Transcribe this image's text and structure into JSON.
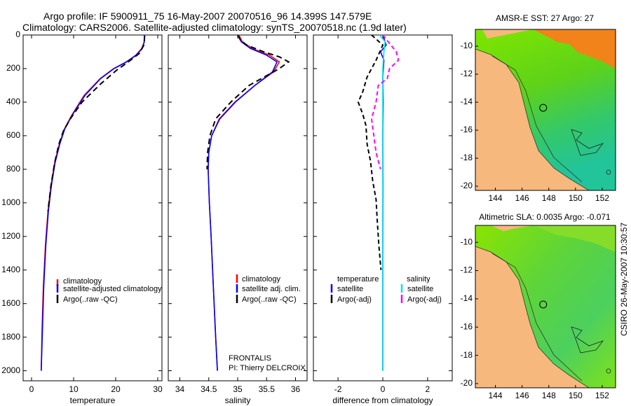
{
  "header": {
    "line1": "Argo profile: IF 5900911_75 16-May-2007 20070516_96 14.399S 147.579E",
    "line2": "Climatology: CARS2006. Satellite-adjusted climatology: synTS_20070518.nc (1.9d later)"
  },
  "colors": {
    "climatology": "#ff0000",
    "satellite": "#0000ff",
    "argo": "#000000",
    "sal_sat": "#00e5e5",
    "sal_argo": "#ff00ff"
  },
  "footer": "CSIRO 26-May-2007 10:30:57",
  "frontalis": {
    "name": "FRONTALIS",
    "pi": "PI: Thierry DELCROIX"
  },
  "chart_data": [
    {
      "type": "line",
      "panel": "temperature",
      "xlabel": "temperature",
      "xlim": [
        -2,
        31
      ],
      "xticks": [
        "0",
        "10",
        "20",
        "30"
      ],
      "xtick_values": [
        0,
        10,
        20,
        30
      ],
      "ylim": [
        2060,
        0
      ],
      "yticks": [
        "0",
        "200",
        "400",
        "600",
        "800",
        "1000",
        "1200",
        "1400",
        "1600",
        "1800",
        "2000"
      ],
      "ytick_values": [
        0,
        200,
        400,
        600,
        800,
        1000,
        1200,
        1400,
        1600,
        1800,
        2000
      ],
      "legend": [
        "climatology",
        "satellite-adjusted climatology",
        "Argo(..raw -QC)"
      ],
      "series": [
        {
          "name": "climatology",
          "color": "#ff0000",
          "dash": "",
          "x": [
            26.8,
            26.8,
            26.2,
            24.8,
            22.5,
            19.5,
            16.3,
            12.5,
            9.5,
            7.8,
            6.6,
            5.5,
            4.6,
            3.9,
            3.3,
            2.8,
            2.5,
            2.3
          ],
          "y": [
            0,
            40,
            80,
            120,
            160,
            200,
            260,
            360,
            480,
            560,
            650,
            760,
            900,
            1050,
            1250,
            1500,
            1750,
            2000
          ]
        },
        {
          "name": "satellite-adjusted climatology",
          "color": "#0000ff",
          "dash": "",
          "x": [
            26.8,
            26.8,
            26.3,
            24.9,
            22.6,
            19.6,
            16.4,
            12.7,
            9.6,
            7.9,
            6.7,
            5.6,
            4.7,
            4.0,
            3.4,
            2.9,
            2.6,
            2.3
          ],
          "y": [
            0,
            40,
            80,
            120,
            160,
            200,
            260,
            360,
            480,
            560,
            650,
            760,
            900,
            1050,
            1250,
            1500,
            1750,
            2000
          ]
        },
        {
          "name": "Argo(..raw -QC)",
          "color": "#000000",
          "dash": "8,5",
          "x": [
            26.9,
            26.7,
            25.6,
            23.0,
            20.2,
            16.5,
            12.0,
            9.2,
            7.6,
            6.5,
            5.5,
            4.6,
            3.9
          ],
          "y": [
            5,
            60,
            110,
            160,
            210,
            290,
            400,
            500,
            570,
            650,
            760,
            900,
            1050
          ]
        }
      ]
    },
    {
      "type": "line",
      "panel": "salinity",
      "xlabel": "salinity",
      "xlim": [
        33.8,
        36.2
      ],
      "xticks": [
        "34",
        "34.5",
        "35",
        "35.5",
        "36"
      ],
      "xtick_values": [
        34,
        34.5,
        35,
        35.5,
        36
      ],
      "ylim": [
        2060,
        0
      ],
      "legend": [
        "climatology",
        "satellite adj. clim.",
        "Argo(..raw -QC)"
      ],
      "series": [
        {
          "name": "climatology",
          "color": "#ff0000",
          "dash": "",
          "x": [
            35.02,
            35.08,
            35.25,
            35.55,
            35.72,
            35.62,
            35.3,
            34.95,
            34.68,
            34.55,
            34.5,
            34.49,
            34.51,
            34.54,
            34.58,
            34.62,
            34.65
          ],
          "y": [
            0,
            40,
            80,
            120,
            160,
            220,
            300,
            400,
            500,
            600,
            700,
            800,
            1000,
            1200,
            1500,
            1800,
            2000
          ]
        },
        {
          "name": "satellite adj. clim.",
          "color": "#0000ff",
          "dash": "",
          "x": [
            35.0,
            35.06,
            35.22,
            35.5,
            35.68,
            35.6,
            35.3,
            34.96,
            34.69,
            34.55,
            34.5,
            34.49,
            34.51,
            34.54,
            34.58,
            34.62,
            34.65
          ],
          "y": [
            0,
            40,
            80,
            120,
            160,
            220,
            300,
            400,
            500,
            600,
            700,
            800,
            1000,
            1200,
            1500,
            1800,
            2000
          ]
        },
        {
          "name": "Argo(..raw -QC)",
          "color": "#000000",
          "dash": "8,5",
          "x": [
            35.0,
            35.05,
            35.15,
            35.45,
            35.72,
            35.88,
            35.72,
            35.2,
            34.88,
            34.62,
            34.52,
            34.48,
            34.47
          ],
          "y": [
            0,
            30,
            60,
            100,
            130,
            160,
            200,
            300,
            400,
            500,
            600,
            700,
            800
          ]
        }
      ]
    },
    {
      "type": "line",
      "panel": "difference",
      "xlabel": "difference from climatology",
      "xlim": [
        -3.1,
        3.1
      ],
      "xticks": [
        "-2",
        "0",
        "2"
      ],
      "xtick_values": [
        -2,
        0,
        2
      ],
      "ylim": [
        2060,
        0
      ],
      "legend_headers": [
        "temperature",
        "salinity"
      ],
      "legend": [
        "satellite",
        "Argo(-adj)",
        "satellite",
        "Argo(-adj)"
      ],
      "series": [
        {
          "name": "temperature satellite",
          "color": "#0000ff",
          "dash": "",
          "x": [
            0.0,
            0.15,
            -0.1,
            0.05,
            0.0,
            0.02,
            0.0,
            0.01,
            0.0,
            0.0,
            0.0
          ],
          "y": [
            0,
            60,
            100,
            150,
            250,
            400,
            600,
            900,
            1300,
            1700,
            2000
          ]
        },
        {
          "name": "temperature Argo(-adj)",
          "color": "#000000",
          "dash": "6,4",
          "x": [
            -0.5,
            0.0,
            -0.3,
            -0.7,
            -0.9,
            -1.1,
            -0.9,
            -0.75,
            -0.7,
            -0.55,
            -0.45,
            -0.3,
            -0.25,
            -0.18,
            -0.08
          ],
          "y": [
            0,
            60,
            150,
            250,
            340,
            400,
            470,
            540,
            650,
            750,
            870,
            980,
            1100,
            1250,
            1400
          ]
        },
        {
          "name": "salinity satellite",
          "color": "#00e5e5",
          "dash": "",
          "x": [
            -0.15,
            0.1,
            0.05,
            0.0,
            0.0,
            0.0,
            0.0
          ],
          "y": [
            0,
            40,
            100,
            200,
            600,
            1200,
            2000
          ]
        },
        {
          "name": "salinity Argo(-adj)",
          "color": "#ff00ff",
          "dash": "6,4",
          "x": [
            0.0,
            0.3,
            0.6,
            0.7,
            0.3,
            0.2,
            -0.2,
            -0.3,
            -0.5,
            -0.4,
            -0.3,
            -0.1
          ],
          "y": [
            0,
            50,
            100,
            150,
            200,
            260,
            300,
            400,
            500,
            600,
            700,
            800
          ]
        }
      ]
    },
    {
      "type": "heatmap",
      "panel": "map-sst",
      "title": "AMSR-E SST: 27 Argo: 27",
      "xticks": [
        "144",
        "146",
        "148",
        "150",
        "152"
      ],
      "xtick_values": [
        144,
        146,
        148,
        150,
        152
      ],
      "yticks": [
        "-10",
        "-12",
        "-14",
        "-16",
        "-18",
        "-20"
      ],
      "ytick_values": [
        -10,
        -12,
        -14,
        -16,
        -18,
        -20
      ],
      "xlim": [
        142.5,
        153
      ],
      "ylim": [
        -20.3,
        -8.8
      ],
      "argo_position": [
        147.579,
        -14.399
      ]
    },
    {
      "type": "heatmap",
      "panel": "map-sla",
      "title": "Altimetric SLA: 0.0035 Argo: -0.071",
      "xticks": [
        "144",
        "146",
        "148",
        "150",
        "152"
      ],
      "xtick_values": [
        144,
        146,
        148,
        150,
        152
      ],
      "yticks": [
        "-10",
        "-12",
        "-14",
        "-16",
        "-18",
        "-20"
      ],
      "ytick_values": [
        -10,
        -12,
        -14,
        -16,
        -18,
        -20
      ],
      "xlim": [
        142.5,
        153
      ],
      "ylim": [
        -20.3,
        -8.8
      ],
      "argo_position": [
        147.579,
        -14.399
      ]
    }
  ]
}
